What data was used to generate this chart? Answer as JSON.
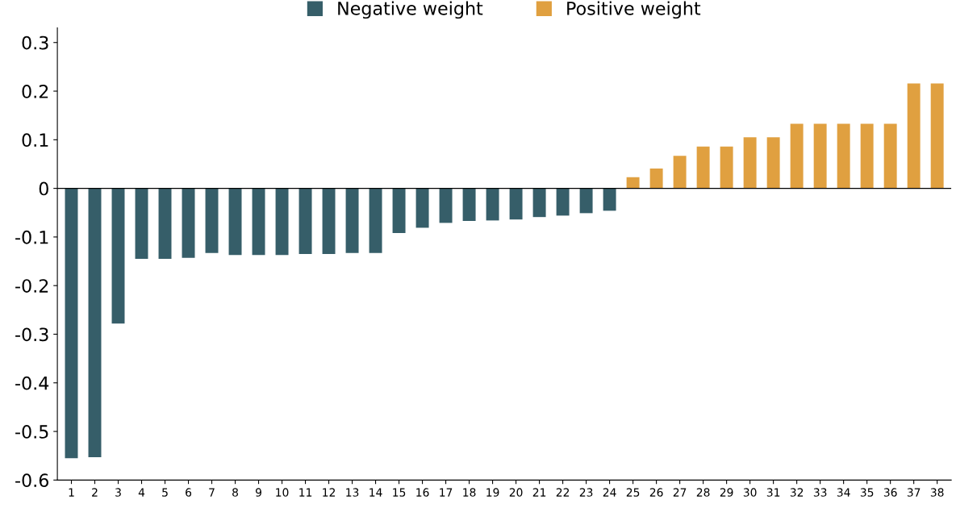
{
  "chart_data": {
    "type": "bar",
    "categories": [
      "1",
      "2",
      "3",
      "4",
      "5",
      "6",
      "7",
      "8",
      "9",
      "10",
      "11",
      "12",
      "13",
      "14",
      "15",
      "16",
      "17",
      "18",
      "19",
      "20",
      "21",
      "22",
      "23",
      "24",
      "25",
      "26",
      "27",
      "28",
      "29",
      "30",
      "31",
      "32",
      "33",
      "34",
      "35",
      "36",
      "37",
      "38"
    ],
    "series": [
      {
        "name": "Negative weight",
        "color": "#365e69",
        "values": [
          -0.555,
          -0.553,
          -0.278,
          -0.145,
          -0.145,
          -0.143,
          -0.133,
          -0.137,
          -0.137,
          -0.137,
          -0.135,
          -0.135,
          -0.133,
          -0.133,
          -0.092,
          -0.081,
          -0.071,
          -0.067,
          -0.066,
          -0.064,
          -0.059,
          -0.056,
          -0.051,
          -0.046,
          null,
          null,
          null,
          null,
          null,
          null,
          null,
          null,
          null,
          null,
          null,
          null,
          null,
          null
        ]
      },
      {
        "name": "Positive weight",
        "color": "#e0a040",
        "values": [
          null,
          null,
          null,
          null,
          null,
          null,
          null,
          null,
          null,
          null,
          null,
          null,
          null,
          null,
          null,
          null,
          null,
          null,
          null,
          null,
          null,
          null,
          null,
          null,
          0.023,
          0.041,
          0.067,
          0.086,
          0.086,
          0.105,
          0.105,
          0.133,
          0.133,
          0.133,
          0.133,
          0.133,
          0.216,
          0.216
        ]
      }
    ],
    "ylim": [
      -0.6,
      0.33
    ],
    "yticks": [
      {
        "value": -0.6,
        "label": "-0.6"
      },
      {
        "value": -0.5,
        "label": "-0.5"
      },
      {
        "value": -0.4,
        "label": "-0.4"
      },
      {
        "value": -0.3,
        "label": "-0.3"
      },
      {
        "value": -0.2,
        "label": "-0.2"
      },
      {
        "value": -0.1,
        "label": "-0.1"
      },
      0,
      0.1,
      0.2,
      0.3
    ],
    "ref_lines": [
      {
        "axis": "y",
        "value": 0,
        "color": "#000000"
      }
    ],
    "grid": false,
    "legend": "top"
  }
}
